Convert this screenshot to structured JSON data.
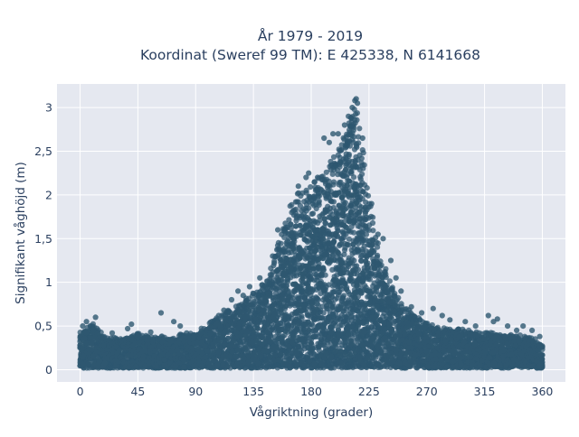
{
  "chart_data": {
    "type": "scatter",
    "title_line1": "År 1979 - 2019",
    "title_line2": "Koordinat (Sweref 99 TM): E 425338, N 6141668",
    "xlabel": "Vågriktning (grader)",
    "ylabel": "Signifikant våghöjd (m)",
    "xlim": [
      -18,
      378
    ],
    "ylim": [
      -0.14,
      3.27
    ],
    "x_ticks": [
      0,
      45,
      90,
      135,
      180,
      225,
      270,
      315,
      360
    ],
    "x_tick_labels": [
      "0",
      "45",
      "90",
      "135",
      "180",
      "225",
      "270",
      "315",
      "360"
    ],
    "y_ticks": [
      0,
      0.5,
      1,
      1.5,
      2,
      2.5,
      3
    ],
    "y_tick_labels": [
      "0",
      "0,5",
      "1",
      "1,5",
      "2",
      "2,5",
      "3"
    ],
    "grid": true,
    "marker_color": "#2e5770",
    "plot_background": "#e5e8f0",
    "envelope": {
      "x": [
        0,
        10,
        20,
        30,
        45,
        60,
        75,
        90,
        105,
        120,
        135,
        145,
        150,
        155,
        160,
        165,
        170,
        175,
        180,
        185,
        190,
        195,
        200,
        205,
        210,
        215,
        220,
        225,
        230,
        235,
        240,
        245,
        250,
        260,
        270,
        285,
        300,
        315,
        330,
        345,
        360
      ],
      "max_y": [
        0.45,
        0.55,
        0.4,
        0.38,
        0.45,
        0.4,
        0.42,
        0.45,
        0.6,
        0.75,
        0.9,
        1.05,
        1.25,
        1.5,
        1.75,
        1.95,
        2.05,
        2.1,
        2.15,
        2.2,
        2.25,
        2.4,
        2.5,
        2.7,
        2.9,
        3.1,
        2.6,
        2.0,
        1.6,
        1.3,
        1.1,
        0.9,
        0.8,
        0.65,
        0.55,
        0.5,
        0.48,
        0.45,
        0.45,
        0.42,
        0.35
      ]
    },
    "outliers": [
      {
        "x": 2,
        "y": 0.5
      },
      {
        "x": 5,
        "y": 0.55
      },
      {
        "x": 12,
        "y": 0.6
      },
      {
        "x": 25,
        "y": 0.42
      },
      {
        "x": 37,
        "y": 0.47
      },
      {
        "x": 40,
        "y": 0.52
      },
      {
        "x": 55,
        "y": 0.43
      },
      {
        "x": 63,
        "y": 0.65
      },
      {
        "x": 73,
        "y": 0.55
      },
      {
        "x": 78,
        "y": 0.5
      },
      {
        "x": 83,
        "y": 0.42
      },
      {
        "x": 108,
        "y": 0.62
      },
      {
        "x": 112,
        "y": 0.68
      },
      {
        "x": 118,
        "y": 0.8
      },
      {
        "x": 123,
        "y": 0.9
      },
      {
        "x": 127,
        "y": 0.85
      },
      {
        "x": 132,
        "y": 0.95
      },
      {
        "x": 140,
        "y": 1.05
      },
      {
        "x": 150,
        "y": 1.3
      },
      {
        "x": 154,
        "y": 1.6
      },
      {
        "x": 170,
        "y": 2.1
      },
      {
        "x": 176,
        "y": 2.2
      },
      {
        "x": 178,
        "y": 2.25
      },
      {
        "x": 185,
        "y": 2.2
      },
      {
        "x": 190,
        "y": 2.65
      },
      {
        "x": 194,
        "y": 2.6
      },
      {
        "x": 197,
        "y": 2.7
      },
      {
        "x": 201,
        "y": 2.7
      },
      {
        "x": 206,
        "y": 2.8
      },
      {
        "x": 209,
        "y": 2.9
      },
      {
        "x": 212,
        "y": 3.0
      },
      {
        "x": 214,
        "y": 3.08
      },
      {
        "x": 215,
        "y": 3.1
      },
      {
        "x": 216,
        "y": 3.05
      },
      {
        "x": 220,
        "y": 2.65
      },
      {
        "x": 227,
        "y": 1.9
      },
      {
        "x": 232,
        "y": 1.55
      },
      {
        "x": 236,
        "y": 1.5
      },
      {
        "x": 242,
        "y": 1.25
      },
      {
        "x": 246,
        "y": 1.05
      },
      {
        "x": 250,
        "y": 0.9
      },
      {
        "x": 258,
        "y": 0.72
      },
      {
        "x": 266,
        "y": 0.65
      },
      {
        "x": 275,
        "y": 0.7
      },
      {
        "x": 282,
        "y": 0.62
      },
      {
        "x": 288,
        "y": 0.57
      },
      {
        "x": 300,
        "y": 0.55
      },
      {
        "x": 308,
        "y": 0.5
      },
      {
        "x": 318,
        "y": 0.62
      },
      {
        "x": 322,
        "y": 0.55
      },
      {
        "x": 325,
        "y": 0.58
      },
      {
        "x": 333,
        "y": 0.5
      },
      {
        "x": 340,
        "y": 0.45
      },
      {
        "x": 345,
        "y": 0.5
      },
      {
        "x": 352,
        "y": 0.45
      },
      {
        "x": 358,
        "y": 0.38
      }
    ]
  }
}
